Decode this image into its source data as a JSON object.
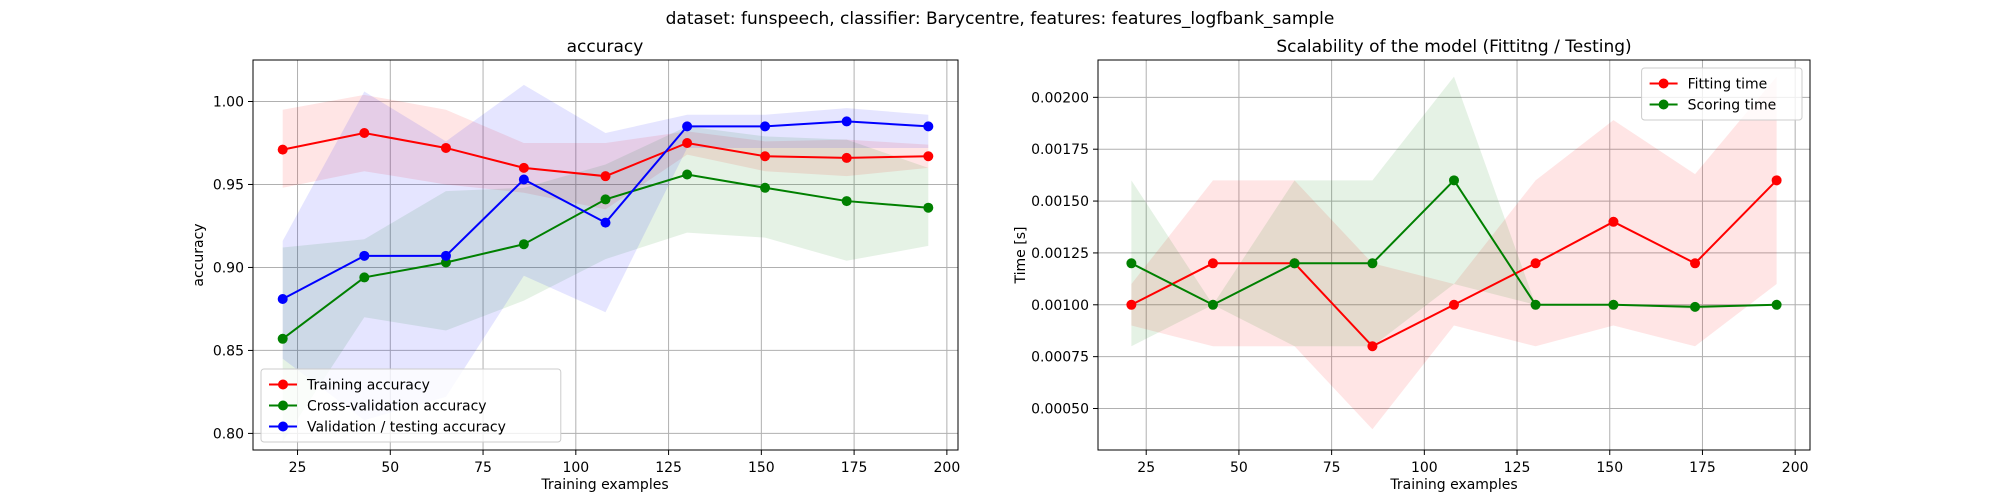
{
  "figure_title": "dataset: funspeech, classifier: Barycentre, features: features_logfbank_sample",
  "colors": {
    "red": "#ff0000",
    "green": "#008000",
    "blue": "#0000ff",
    "grid": "#b0b0b0"
  },
  "chart_data": [
    {
      "type": "line",
      "title": "accuracy",
      "xlabel": "Training examples",
      "ylabel": "accuracy",
      "xlim": [
        13,
        203
      ],
      "ylim": [
        0.79,
        1.025
      ],
      "xticks": [
        25,
        50,
        75,
        100,
        125,
        150,
        175,
        200
      ],
      "yticks": [
        0.8,
        0.85,
        0.9,
        0.95,
        1.0
      ],
      "ytick_decimals": 2,
      "grid": true,
      "legend_position": "lower-left",
      "x": [
        21,
        43,
        65,
        86,
        108,
        130,
        151,
        173,
        195
      ],
      "series": [
        {
          "name": "Training accuracy",
          "color": "#ff0000",
          "values": [
            0.971,
            0.981,
            0.972,
            0.96,
            0.955,
            0.975,
            0.967,
            0.966,
            0.967
          ],
          "lower": [
            0.948,
            0.958,
            0.95,
            0.945,
            0.935,
            0.968,
            0.958,
            0.955,
            0.96
          ],
          "upper": [
            0.995,
            1.004,
            0.995,
            0.975,
            0.975,
            0.982,
            0.976,
            0.977,
            0.974
          ]
        },
        {
          "name": "Cross-validation accuracy",
          "color": "#008000",
          "values": [
            0.857,
            0.894,
            0.903,
            0.914,
            0.941,
            0.956,
            0.948,
            0.94,
            0.936
          ],
          "lower": [
            0.795,
            0.87,
            0.862,
            0.88,
            0.905,
            0.921,
            0.918,
            0.904,
            0.913
          ],
          "upper": [
            0.912,
            0.917,
            0.946,
            0.948,
            0.962,
            0.985,
            0.979,
            0.977,
            0.96
          ]
        },
        {
          "name": "Validation / testing accuracy",
          "color": "#0000ff",
          "values": [
            0.881,
            0.907,
            0.907,
            0.953,
            0.927,
            0.985,
            0.985,
            0.988,
            0.985
          ],
          "lower": [
            0.845,
            0.808,
            0.822,
            0.895,
            0.873,
            0.972,
            0.972,
            0.972,
            0.972
          ],
          "upper": [
            0.916,
            1.006,
            0.976,
            1.01,
            0.981,
            0.992,
            0.992,
            0.996,
            0.992
          ]
        }
      ]
    },
    {
      "type": "line",
      "title": "Scalability of the model (Fittitng / Testing)",
      "xlabel": "Training examples",
      "ylabel": "Time [s]",
      "xlim": [
        12,
        204
      ],
      "ylim": [
        0.0003,
        0.00218
      ],
      "xticks": [
        25,
        50,
        75,
        100,
        125,
        150,
        175,
        200
      ],
      "yticks": [
        0.0005,
        0.00075,
        0.001,
        0.00125,
        0.0015,
        0.00175,
        0.002
      ],
      "ytick_decimals": 5,
      "grid": true,
      "legend_position": "top-right",
      "x": [
        21,
        43,
        65,
        86,
        108,
        130,
        151,
        173,
        195
      ],
      "series": [
        {
          "name": "Fitting time",
          "color": "#ff0000",
          "values": [
            0.001,
            0.0012,
            0.0012,
            0.0008,
            0.001,
            0.0012,
            0.0014,
            0.0012,
            0.0016
          ],
          "lower": [
            0.0009,
            0.0008,
            0.0008,
            0.0004,
            0.0009,
            0.0008,
            0.0009,
            0.0008,
            0.0011
          ],
          "upper": [
            0.0011,
            0.0016,
            0.0016,
            0.0012,
            0.0011,
            0.0016,
            0.00189,
            0.00163,
            0.0021
          ]
        },
        {
          "name": "Scoring time",
          "color": "#008000",
          "values": [
            0.0012,
            0.001,
            0.0012,
            0.0012,
            0.0016,
            0.001,
            0.001,
            0.00099,
            0.001
          ],
          "lower": [
            0.0008,
            0.001,
            0.0008,
            0.0008,
            0.0011,
            0.001,
            0.001,
            0.00098,
            0.001
          ],
          "upper": [
            0.0016,
            0.001,
            0.0016,
            0.0016,
            0.0021,
            0.001,
            0.001,
            0.001,
            0.001
          ]
        }
      ]
    }
  ]
}
